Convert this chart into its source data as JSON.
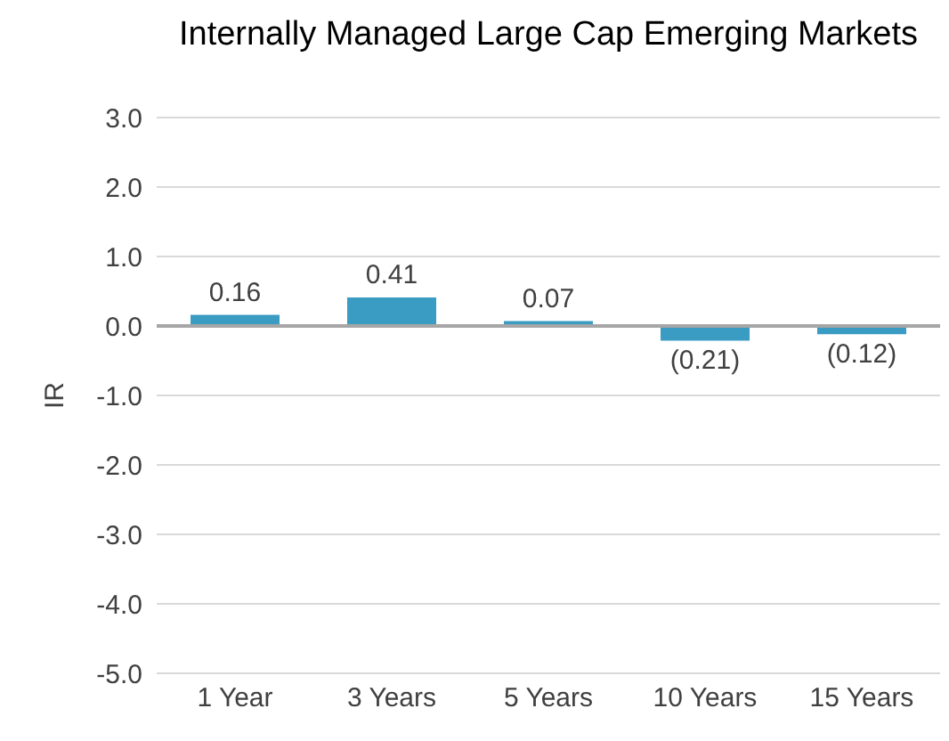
{
  "chart_data": {
    "type": "bar",
    "title": "Internally Managed Large Cap Emerging Markets",
    "ylabel": "IR",
    "categories": [
      "1 Year",
      "3 Years",
      "5 Years",
      "10 Years",
      "15 Years"
    ],
    "values": [
      0.16,
      0.41,
      0.07,
      -0.21,
      -0.12
    ],
    "value_labels": [
      "0.16",
      "0.41",
      "0.07",
      "(0.21)",
      "(0.12)"
    ],
    "color": "#3a9bc3",
    "ylim": [
      -5,
      3
    ],
    "yticks": [
      {
        "value": 3,
        "label": "3.0"
      },
      {
        "value": 2,
        "label": "2.0"
      },
      {
        "value": 1,
        "label": "1.0"
      },
      {
        "value": 0,
        "label": "0.0"
      },
      {
        "value": -1,
        "label": "-1.0"
      },
      {
        "value": -2,
        "label": "-2.0"
      },
      {
        "value": -3,
        "label": "-3.0"
      },
      {
        "value": -4,
        "label": "-4.0"
      },
      {
        "value": -5,
        "label": "-5.0"
      }
    ],
    "grid": "y",
    "legend": false
  }
}
